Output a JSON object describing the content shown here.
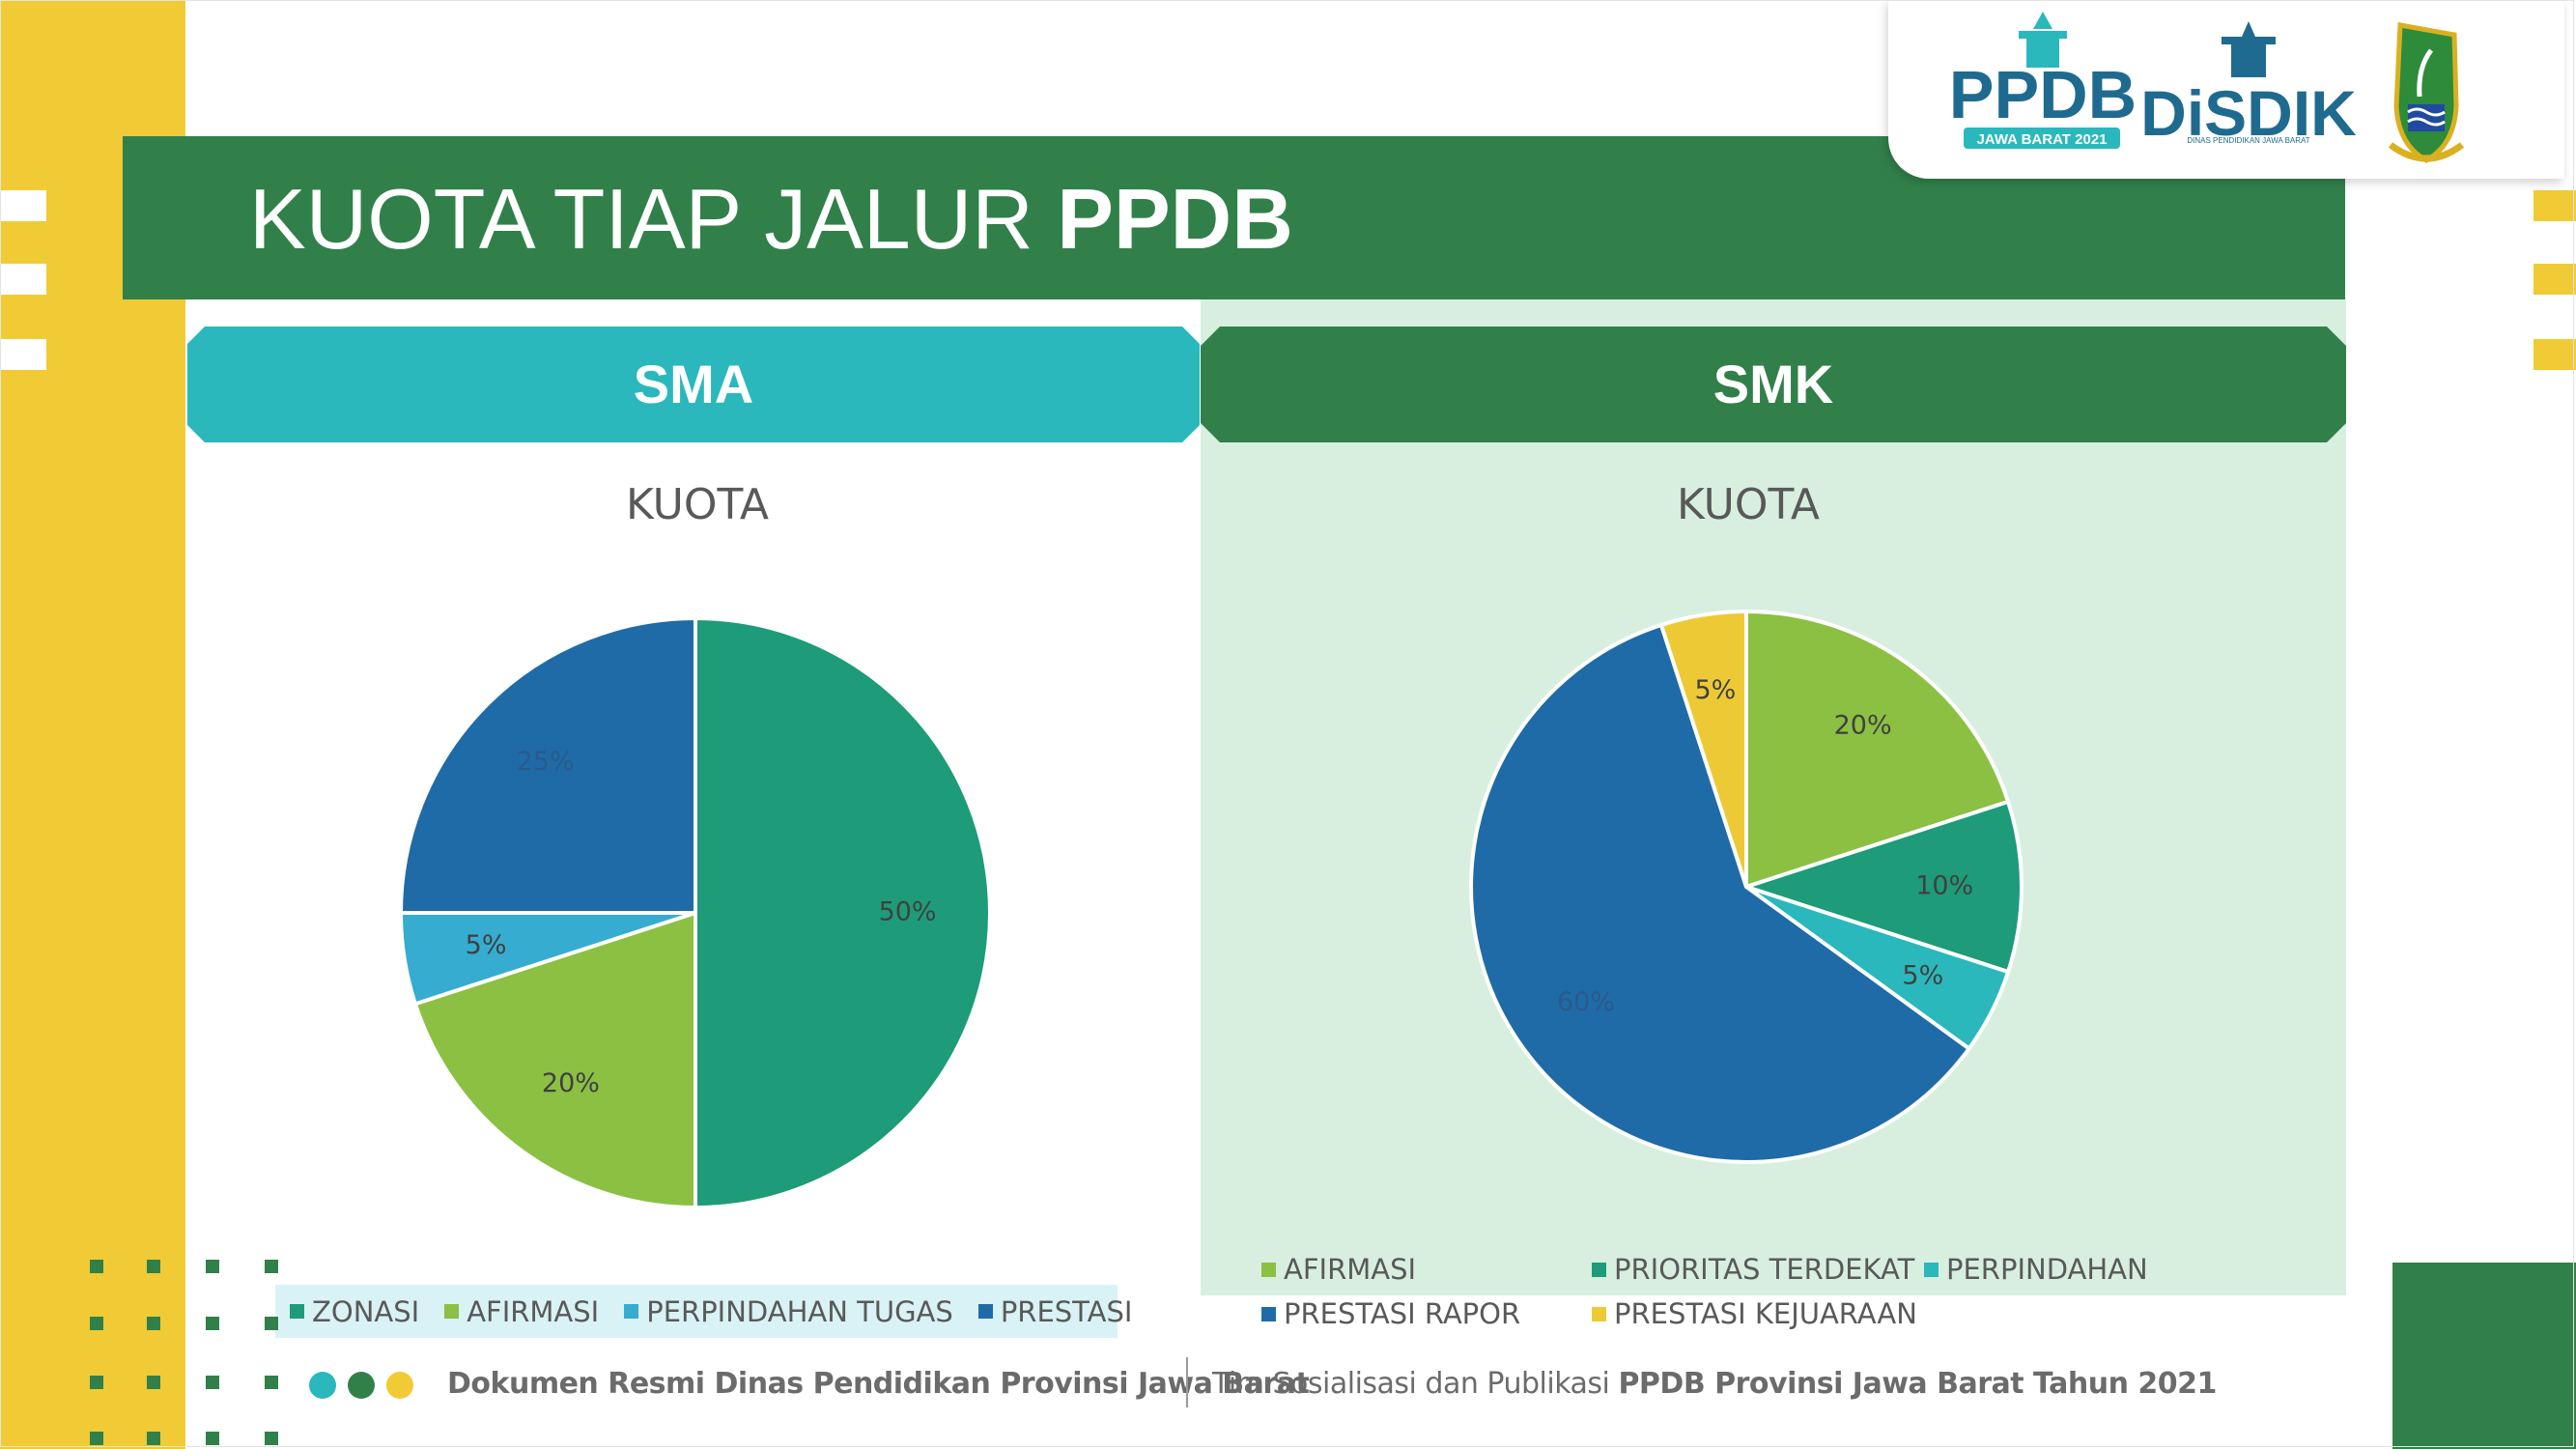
{
  "slide": {
    "title_regular": "KUOTA TIAP JALUR ",
    "title_bold": "PPDB"
  },
  "logos": {
    "ppdb_text": "PPDB",
    "ppdb_sub": "JAWA BARAT 2021",
    "disdik_text": "DiSDIK",
    "disdik_sub": "DINAS PENDIDIKAN JAWA BARAT"
  },
  "colors": {
    "green_dark": "#31804a",
    "teal": "#2ab8bc",
    "yellow": "#f0cb35",
    "panel_green": "#d8efe0"
  },
  "sections": {
    "sma_label": "SMA",
    "smk_label": "SMK"
  },
  "chart_data": [
    {
      "type": "pie",
      "title": "KUOTA",
      "categories": [
        "ZONASI",
        "AFIRMASI",
        "PERPINDAHAN TUGAS",
        "PRESTASI"
      ],
      "values": [
        50,
        20,
        5,
        25
      ],
      "labels": [
        "50%",
        "20%",
        "5%",
        "25%"
      ],
      "colors": [
        "#1e9b78",
        "#8bc043",
        "#36acd0",
        "#1f6ba8"
      ],
      "legend": "bottom"
    },
    {
      "type": "pie",
      "title": "KUOTA",
      "categories": [
        "AFIRMASI",
        "PRIORITAS TERDEKAT",
        "PERPINDAHAN",
        "PRESTASI RAPOR",
        "PRESTASI KEJUARAAN"
      ],
      "values": [
        20,
        10,
        5,
        60,
        5
      ],
      "labels": [
        "20%",
        "10%",
        "5%",
        "60%",
        "5%"
      ],
      "colors": [
        "#8bc043",
        "#1e9b78",
        "#2ab8bc",
        "#1f6ba8",
        "#edca35"
      ],
      "legend": "bottom"
    }
  ],
  "footer": {
    "left_text": "Dokumen Resmi Dinas Pendidikan Provinsi Jawa Barat",
    "right_prefix": "Tim Sosialisasi dan Publikasi ",
    "right_bold": "PPDB Provinsi Jawa Barat Tahun 2021"
  }
}
